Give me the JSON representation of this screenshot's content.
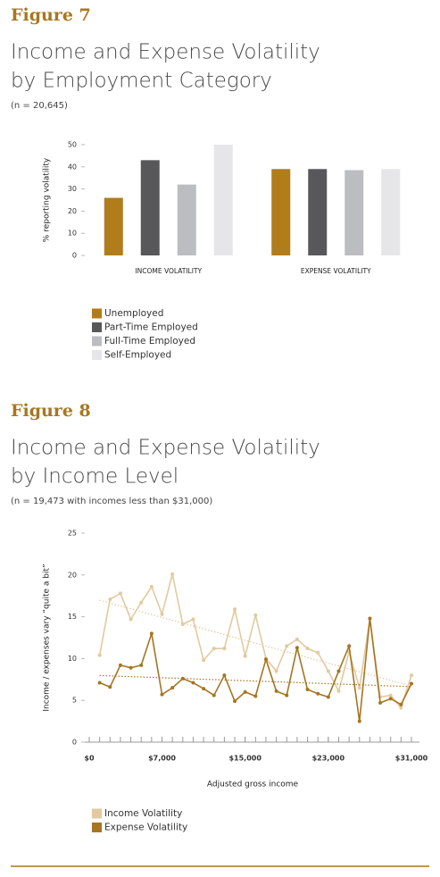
{
  "chart_data": [
    {
      "type": "bar",
      "figure": "Figure 7",
      "title": [
        "Income and Expense Volatility",
        "by Employment Category"
      ],
      "subtitle": "(n = 20,645)",
      "y_label": "% reporting volatility",
      "categories": [
        "INCOME VOLATILITY",
        "EXPENSE VOLATILITY"
      ],
      "series": [
        {
          "name": "Unemployed",
          "color": "#b07d1a",
          "values": [
            26,
            39
          ]
        },
        {
          "name": "Part-Time Employed",
          "color": "#58585a",
          "values": [
            43,
            39
          ]
        },
        {
          "name": "Full-Time Employed",
          "color": "#bcbdc0",
          "values": [
            32,
            38.5
          ]
        },
        {
          "name": "Self-Employed",
          "color": "#e6e6e8",
          "values": [
            50,
            39
          ]
        }
      ],
      "ylim": [
        0,
        50
      ],
      "yticks": [
        0,
        10,
        20,
        30,
        40,
        50
      ],
      "legend": "bottom-left"
    },
    {
      "type": "line",
      "figure": "Figure 8",
      "title": [
        "Income and Expense Volatility",
        "by Income Level"
      ],
      "subtitle": "(n = 19,473 with incomes less than $31,000)",
      "x_label": "Adjusted gross income",
      "y_label": "Income / expenses vary “quite a bit”",
      "x": [
        1000,
        2000,
        3000,
        4000,
        5000,
        6000,
        7000,
        8000,
        9000,
        10000,
        11000,
        12000,
        13000,
        14000,
        15000,
        16000,
        17000,
        18000,
        19000,
        20000,
        21000,
        22000,
        23000,
        24000,
        25000,
        26000,
        27000,
        28000,
        29000,
        30000,
        31000
      ],
      "series": [
        {
          "name": "Income Volatility",
          "color": "#e2c9a0",
          "values": [
            10.4,
            17.1,
            17.8,
            14.7,
            16.7,
            18.6,
            15.3,
            20.1,
            14.1,
            14.7,
            9.8,
            11.2,
            11.2,
            15.9,
            10.3,
            15.2,
            10.0,
            8.5,
            11.5,
            12.3,
            11.2,
            10.7,
            8.5,
            6.1,
            10.8,
            6.5,
            14.8,
            5.4,
            5.6,
            4.1,
            8.0
          ]
        },
        {
          "name": "Expense Volatility",
          "color": "#a67522",
          "values": [
            7.1,
            6.6,
            9.2,
            8.9,
            9.2,
            13.0,
            5.7,
            6.5,
            7.6,
            7.1,
            6.4,
            5.6,
            8.0,
            4.9,
            6.0,
            5.5,
            9.9,
            6.1,
            5.6,
            11.3,
            6.3,
            5.8,
            5.4,
            8.5,
            11.5,
            2.5,
            14.8,
            4.7,
            5.2,
            4.5,
            7.0
          ]
        }
      ],
      "xlim": [
        0,
        31000
      ],
      "xticks": [
        {
          "value": 0,
          "label": "$0"
        },
        {
          "value": 7000,
          "label": "$7,000"
        },
        {
          "value": 15000,
          "label": "$15,000"
        },
        {
          "value": 23000,
          "label": "$23,000"
        },
        {
          "value": 31000,
          "label": "$31,000"
        }
      ],
      "ylim": [
        0,
        25
      ],
      "yticks": [
        0,
        5,
        10,
        15,
        20,
        25
      ],
      "trendline": true,
      "legend": "bottom-left"
    }
  ]
}
